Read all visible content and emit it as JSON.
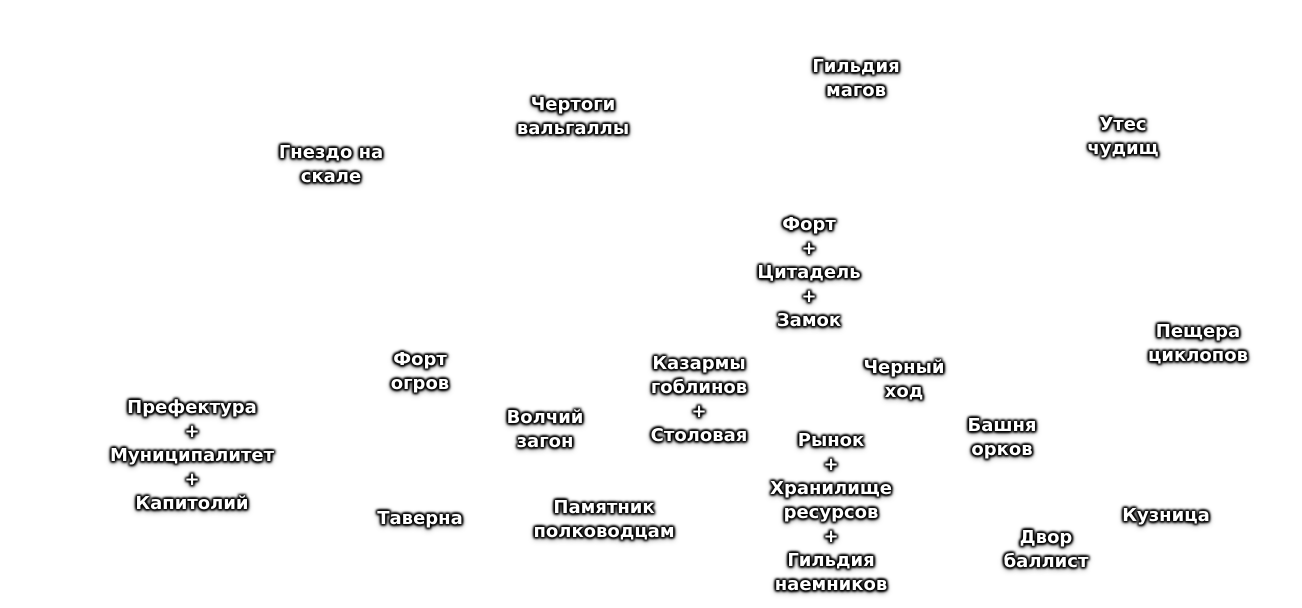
{
  "buildings": {
    "mage_guild": [
      "Гильдия",
      "магов"
    ],
    "valhalla_halls": [
      "Чертоги",
      "вальгаллы"
    ],
    "cliff_nest": [
      "Гнездо на",
      "скале"
    ],
    "behemoth_cliff": [
      "Утес",
      "чудищ"
    ],
    "fort_chain": [
      "Форт",
      "+",
      "Цитадель",
      "+",
      "Замок"
    ],
    "cyclops_cave": [
      "Пещера",
      "циклопов"
    ],
    "ogre_fort": [
      "Форт",
      "огров"
    ],
    "goblin_barracks": [
      "Казармы",
      "гоблинов",
      "+",
      "Столовая"
    ],
    "black_passage": [
      "Черный",
      "ход"
    ],
    "prefecture_chain": [
      "Префектура",
      "+",
      "Муниципалитет",
      "+",
      "Капитолий"
    ],
    "wolf_pen": [
      "Волчий",
      "загон"
    ],
    "market_chain": [
      "Рынок",
      "+",
      "Хранилище",
      "ресурсов",
      "+",
      "Гильдия",
      "наемников"
    ],
    "orc_tower": [
      "Башня",
      "орков"
    ],
    "tavern": [
      "Таверна"
    ],
    "warlord_monument": [
      "Памятник",
      "полководцам"
    ],
    "blacksmith": [
      "Кузница"
    ],
    "ballista_yard": [
      "Двор",
      "баллист"
    ]
  }
}
